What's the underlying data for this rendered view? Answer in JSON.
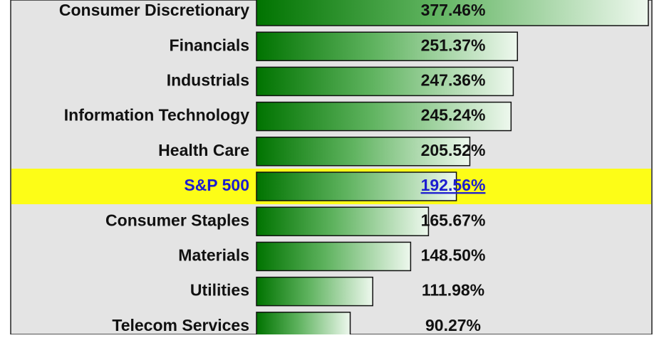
{
  "chart_data": {
    "type": "bar",
    "categories": [
      "Consumer Discretionary",
      "Financials",
      "Industrials",
      "Information Technology",
      "Health Care",
      "S&P 500",
      "Consumer Staples",
      "Materials",
      "Utilities",
      "Telecom Services"
    ],
    "values": [
      377.46,
      251.37,
      247.36,
      245.24,
      205.52,
      192.56,
      165.67,
      148.5,
      111.98,
      90.27
    ],
    "value_labels": [
      "377.46%",
      "251.37%",
      "247.36%",
      "245.24%",
      "205.52%",
      "192.56%",
      "165.67%",
      "148.50%",
      "111.98%",
      "90.27%"
    ],
    "color": "#008000",
    "label_colors": [
      "#111111",
      "#111111",
      "#111111",
      "#111111",
      "#111111",
      "#1c1cd0",
      "#111111",
      "#111111",
      "#111111",
      "#111111"
    ],
    "row_colors": [
      "#e4e4e4",
      "#e4e4e4",
      "#e4e4e4",
      "#e4e4e4",
      "#e4e4e4",
      "#ffff00",
      "#e4e4e4",
      "#e4e4e4",
      "#e4e4e4",
      "#e4e4e4"
    ]
  }
}
